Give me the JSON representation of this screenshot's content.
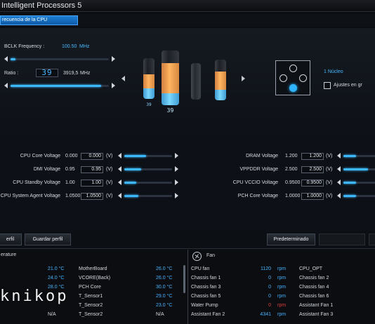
{
  "window": {
    "title": "Intelligent Processors 5"
  },
  "tabs": [
    {
      "label": "recuencia de la CPU",
      "active": true
    }
  ],
  "bclk": {
    "label": "BCLK Frequency :",
    "value": "100.50",
    "unit": "MHz",
    "level": 0.05
  },
  "ratio": {
    "label": "Ratio :",
    "value": "39",
    "freq": "3919,5",
    "unit": "MHz",
    "level": 0.92
  },
  "cores": {
    "cylinders": [
      {
        "label": "39",
        "orange_level": 0.35,
        "blue_level": 0.25
      },
      {
        "label": "39",
        "orange_level": 0.55,
        "blue_level": 0.22,
        "selected": true
      },
      {
        "label": "",
        "orange_level": 0.0,
        "blue_level": 0.0
      },
      {
        "label": "",
        "orange_level": 0.45,
        "blue_level": 0.25
      }
    ],
    "core_count_label": "1 Núcleo",
    "adjust_label": "Ajustes en gr"
  },
  "voltages_left": [
    {
      "label": "CPU Core Voltage",
      "value": "0.000",
      "input": "0.000",
      "unit": "(V)",
      "level": 0.45
    },
    {
      "label": "DMI Voltage",
      "value": "0.95",
      "input": "0.95",
      "unit": "(V)",
      "level": 0.35
    },
    {
      "label": "CPU Standby Voltage",
      "value": "1.00",
      "input": "1.00",
      "unit": "(V)",
      "level": 0.25
    },
    {
      "label": "CPU System Agent Voltage",
      "value": "1.0500",
      "input": "1.0500",
      "unit": "(V)",
      "level": 0.3
    }
  ],
  "voltages_right": [
    {
      "label": "DRAM Voltage",
      "value": "1.200",
      "input": "1.200",
      "unit": "(V)",
      "level": 0.4
    },
    {
      "label": "VPPDDR Voltage",
      "value": "2.500",
      "input": "2.500",
      "unit": "(V)",
      "level": 0.75
    },
    {
      "label": "CPU VCCIO Voltage",
      "value": "0.9500",
      "input": "0.9500",
      "unit": "(V)",
      "level": 0.4
    },
    {
      "label": "PCH Core Voltage",
      "value": "1.0000",
      "input": "1.0000",
      "unit": "(V)",
      "level": 0.4
    }
  ],
  "buttons": {
    "load_profile": "erfil",
    "save_profile": "Guardar perfil",
    "default": "Predeterminado",
    "apply": "",
    "undo": ""
  },
  "temperature": {
    "heading": "erature",
    "rows": [
      {
        "left_value": "21.0 °C",
        "name": "MotherBoard",
        "right_value": "26.0 °C"
      },
      {
        "left_value": "24.0 °C",
        "name": "VCORE(Back)",
        "right_value": "26.0 °C"
      },
      {
        "left_value": "28.0 °C",
        "name": "PCH Core",
        "right_value": "30.0 °C"
      },
      {
        "left_value": "",
        "name": "T_Sensor1",
        "right_value": "29.0 °C"
      },
      {
        "left_value": "",
        "name": "T_Sensor2",
        "right_value": "23.0 °C"
      },
      {
        "left_value": "N/A",
        "name": "T_Sensor2",
        "right_value": "N/A"
      }
    ]
  },
  "fan": {
    "heading": "Fan",
    "rows": [
      {
        "name": "CPU fan",
        "value": "1120",
        "unit": "rpm",
        "right_name": "CPU_OPT"
      },
      {
        "name": "Chassis fan 1",
        "value": "0",
        "unit": "rpm",
        "right_name": "Chassis fan 2"
      },
      {
        "name": "Chassis fan 3",
        "value": "0",
        "unit": "rpm",
        "right_name": "Chassis fan 4"
      },
      {
        "name": "Chassis fan 5",
        "value": "0",
        "unit": "rpm",
        "right_name": "Chassis fan 6"
      },
      {
        "name": "Water Pump",
        "value": "0",
        "unit": "rpm",
        "right_name": "Assistant Fan 1",
        "alert": true
      },
      {
        "name": "Assistant Fan 2",
        "value": "4341",
        "unit": "rpm",
        "right_name": "Assistant Fan 3"
      }
    ]
  },
  "watermark": "knikop",
  "colors": {
    "accent": "#3cb8ff",
    "alert": "#e0403a",
    "tab": "#1f7fd4"
  }
}
